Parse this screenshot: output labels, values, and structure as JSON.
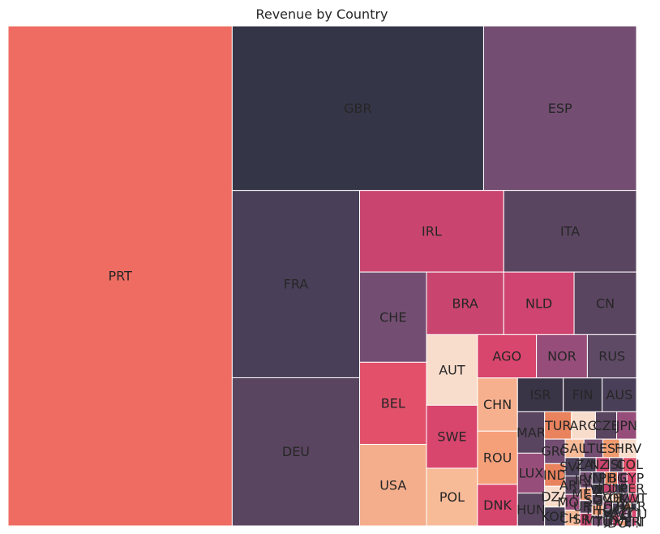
{
  "chart_data": {
    "type": "treemap",
    "title": "Revenue by Country",
    "tiles": [
      {
        "label": "PRT",
        "value": 28.96,
        "color": "#ef6c62"
      },
      {
        "label": "GBR",
        "value": 10.69,
        "color": "#353548"
      },
      {
        "label": "ESP",
        "value": 6.5,
        "color": "#734e72"
      },
      {
        "label": "FRA",
        "value": 6.17,
        "color": "#4a3f58"
      },
      {
        "label": "DEU",
        "value": 4.88,
        "color": "#5a4560"
      },
      {
        "label": "IRL",
        "value": 3.04,
        "color": "#c9456f"
      },
      {
        "label": "ITA",
        "value": 2.8,
        "color": "#5a4560"
      },
      {
        "label": "CHE",
        "value": 1.56,
        "color": "#734e72"
      },
      {
        "label": "USA",
        "value": 1.41,
        "color": "#f4ae8c"
      },
      {
        "label": "CN",
        "value": 1.01,
        "color": "#5a4560"
      },
      {
        "label": "BEL",
        "value": 1.42,
        "color": "#e2506a"
      },
      {
        "label": "BRA",
        "value": 1.25,
        "color": "#c9456f"
      },
      {
        "label": "NLD",
        "value": 1.14,
        "color": "#cf4470"
      },
      {
        "label": "AUT",
        "value": 0.93,
        "color": "#f9ddcc"
      },
      {
        "label": "SWE",
        "value": 0.83,
        "color": "#d8456d"
      },
      {
        "label": "POL",
        "value": 0.76,
        "color": "#f7bb98"
      },
      {
        "label": "AGO",
        "value": 0.66,
        "color": "#d8456d"
      },
      {
        "label": "NOR",
        "value": 0.57,
        "color": "#974d7a"
      },
      {
        "label": "RUS",
        "value": 0.55,
        "color": "#5f4a66"
      },
      {
        "label": "CHN",
        "value": 0.55,
        "color": "#f7b08e"
      },
      {
        "label": "ROU",
        "value": 0.55,
        "color": "#f6a07a"
      },
      {
        "label": "DNK",
        "value": 0.43,
        "color": "#d8456d"
      },
      {
        "label": "ISR",
        "value": 0.4,
        "color": "#3a3447"
      },
      {
        "label": "FIN",
        "value": 0.34,
        "color": "#3a3447"
      },
      {
        "label": "AUS",
        "value": 0.3,
        "color": "#4a3f58"
      },
      {
        "label": "MAR",
        "value": 0.29,
        "color": "#5a4560"
      },
      {
        "label": "LUX",
        "value": 0.28,
        "color": "#974d7a"
      },
      {
        "label": "HUN",
        "value": 0.23,
        "color": "#5a4560"
      },
      {
        "label": "TUR",
        "value": 0.19,
        "color": "#e9835e"
      },
      {
        "label": "ARG",
        "value": 0.17,
        "color": "#f9ddcc"
      },
      {
        "label": "JPN",
        "value": 0.14,
        "color": "#974d7a"
      },
      {
        "label": "CZE",
        "value": 0.15,
        "color": "#5a4560"
      },
      {
        "label": "GRC",
        "value": 0.13,
        "color": "#734e72"
      },
      {
        "label": "IND",
        "value": 0.12,
        "color": "#e9835e"
      },
      {
        "label": "DZA",
        "value": 0.11,
        "color": "#f9ddcc"
      },
      {
        "label": "KOR",
        "value": 0.1,
        "color": "#4a3f58"
      },
      {
        "label": "SAU",
        "value": 0.09,
        "color": "#f7bb98"
      },
      {
        "label": "LTU",
        "value": 0.09,
        "color": "#734e72"
      },
      {
        "label": "EST",
        "value": 0.08,
        "color": "#f09b6e"
      },
      {
        "label": "HRV",
        "value": 0.08,
        "color": "#f9ddcc"
      },
      {
        "label": "SVK",
        "value": 0.07,
        "color": "#4a3f58"
      },
      {
        "label": "ARE",
        "value": 0.07,
        "color": "#5a4560"
      },
      {
        "label": "MOZ",
        "value": 0.06,
        "color": "#974d7a"
      },
      {
        "label": "CHL",
        "value": 0.06,
        "color": "#f7bb98"
      },
      {
        "label": "ZAF",
        "value": 0.06,
        "color": "#4a3f58"
      },
      {
        "label": "NZL",
        "value": 0.05,
        "color": "#c9456f"
      },
      {
        "label": "ISL",
        "value": 0.05,
        "color": "#5a4560"
      },
      {
        "label": "COL",
        "value": 0.05,
        "color": "#e2506a"
      },
      {
        "label": "IRN",
        "value": 0.05,
        "color": "#734e72"
      },
      {
        "label": "MEX",
        "value": 0.04,
        "color": "#f6a07a"
      },
      {
        "label": "URY",
        "value": 0.04,
        "color": "#5a4560"
      },
      {
        "label": "SRB",
        "value": 0.04,
        "color": "#c9456f"
      },
      {
        "label": "VNM",
        "value": 0.04,
        "color": "#4a3f58"
      },
      {
        "label": "PHL",
        "value": 0.04,
        "color": "#e9835e"
      },
      {
        "label": "BGR",
        "value": 0.03,
        "color": "#974d7a"
      },
      {
        "label": "CYP",
        "value": 0.03,
        "color": "#d8456d"
      },
      {
        "label": "TWN",
        "value": 0.03,
        "color": "#3a3447"
      },
      {
        "label": "SGP",
        "value": 0.03,
        "color": "#5a4560"
      },
      {
        "label": "THA",
        "value": 0.03,
        "color": "#f6a07a"
      },
      {
        "label": "MYS",
        "value": 0.03,
        "color": "#734e72"
      },
      {
        "label": "IDN",
        "value": 0.03,
        "color": "#c9456f"
      },
      {
        "label": "UKR",
        "value": 0.03,
        "color": "#4a3f58"
      },
      {
        "label": "PER",
        "value": 0.02,
        "color": "#e2506a"
      },
      {
        "label": "SVN",
        "value": 0.02,
        "color": "#f9ddcc"
      },
      {
        "label": "EGY",
        "value": 0.02,
        "color": "#974d7a"
      },
      {
        "label": "LVA",
        "value": 0.02,
        "color": "#3a3447"
      },
      {
        "label": "TUN",
        "value": 0.02,
        "color": "#5a4560"
      },
      {
        "label": "GEO",
        "value": 0.02,
        "color": "#f7bb98"
      },
      {
        "label": "OMN",
        "value": 0.02,
        "color": "#734e72"
      },
      {
        "label": "KWT",
        "value": 0.02,
        "color": "#d8456d"
      },
      {
        "label": "QAT",
        "value": 0.02,
        "color": "#4a3f58"
      },
      {
        "label": "JOR",
        "value": 0.02,
        "color": "#c9456f"
      },
      {
        "label": "LBN",
        "value": 0.01,
        "color": "#5a4560"
      },
      {
        "label": "PAK",
        "value": 0.01,
        "color": "#e9835e"
      },
      {
        "label": "BLR",
        "value": 0.01,
        "color": "#3a3447"
      },
      {
        "label": "AZE",
        "value": 0.01,
        "color": "#974d7a"
      },
      {
        "label": "KAZ",
        "value": 0.01,
        "color": "#734e72"
      },
      {
        "label": "DOM",
        "value": 0.01,
        "color": "#f6a07a"
      },
      {
        "label": "CRI",
        "value": 0.01,
        "color": "#5a4560"
      },
      {
        "label": "ECU",
        "value": 0.01,
        "color": "#d8456d"
      },
      {
        "label": "VEN",
        "value": 0.01,
        "color": "#4a3f58"
      },
      {
        "label": "PRI",
        "value": 0.01,
        "color": "#c9456f"
      }
    ]
  }
}
